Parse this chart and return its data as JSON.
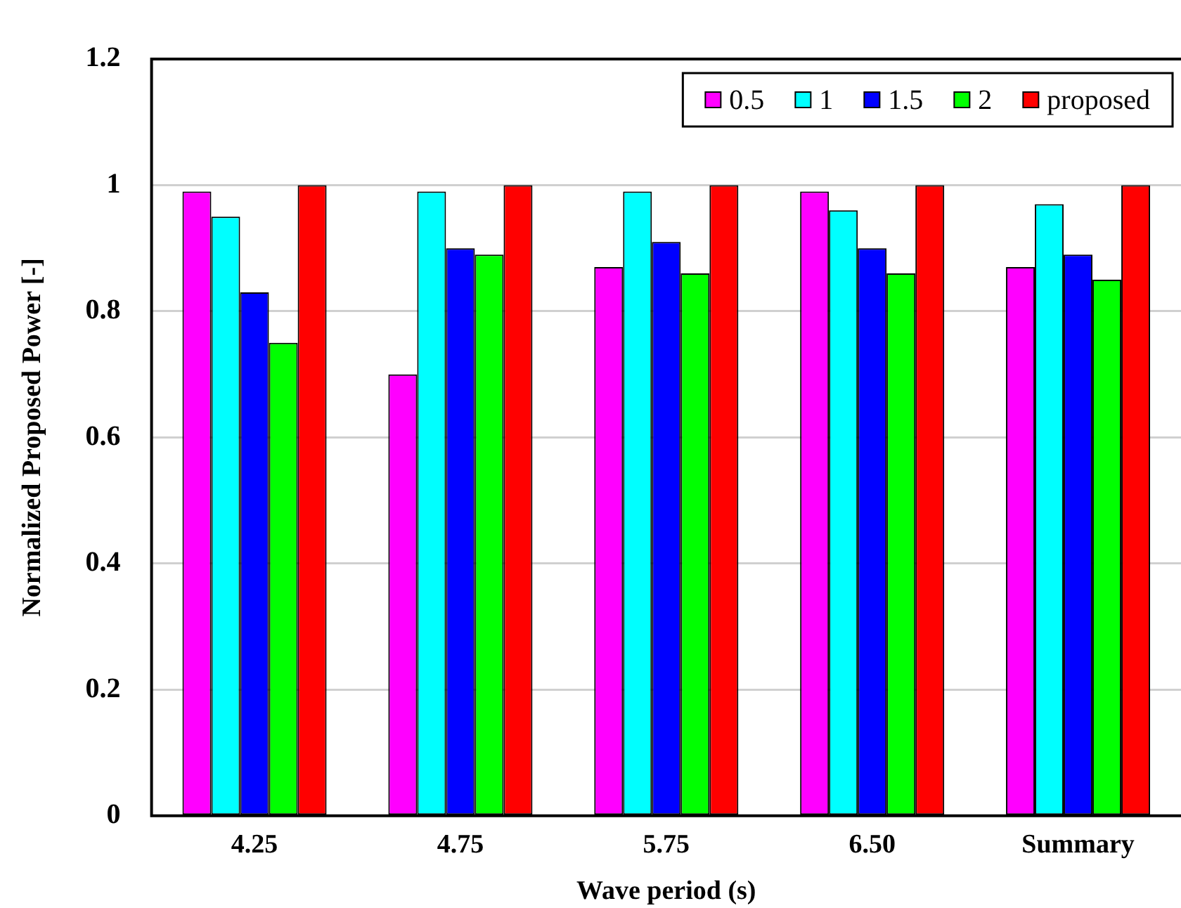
{
  "chart_data": {
    "type": "bar",
    "xlabel": "Wave period (s)",
    "ylabel": "Normalized Proposed Power [-]",
    "categories": [
      "4.25",
      "4.75",
      "5.75",
      "6.50",
      "Summary"
    ],
    "series": [
      {
        "name": "0.5",
        "color": "#ff00ff",
        "values": [
          0.99,
          0.7,
          0.87,
          0.99,
          0.87
        ]
      },
      {
        "name": "1",
        "color": "#00ffff",
        "values": [
          0.95,
          0.99,
          0.99,
          0.96,
          0.97
        ]
      },
      {
        "name": "1.5",
        "color": "#0000ff",
        "values": [
          0.83,
          0.9,
          0.91,
          0.9,
          0.89
        ]
      },
      {
        "name": "2",
        "color": "#00ff00",
        "values": [
          0.75,
          0.89,
          0.86,
          0.86,
          0.85
        ]
      },
      {
        "name": "proposed",
        "color": "#ff0000",
        "values": [
          1,
          1,
          1,
          1,
          1
        ]
      }
    ],
    "ylim": [
      0,
      1.2
    ],
    "yticks": [
      0,
      0.2,
      0.4,
      0.6,
      0.8,
      1,
      1.2
    ],
    "grid": "y",
    "legend": "top right"
  }
}
